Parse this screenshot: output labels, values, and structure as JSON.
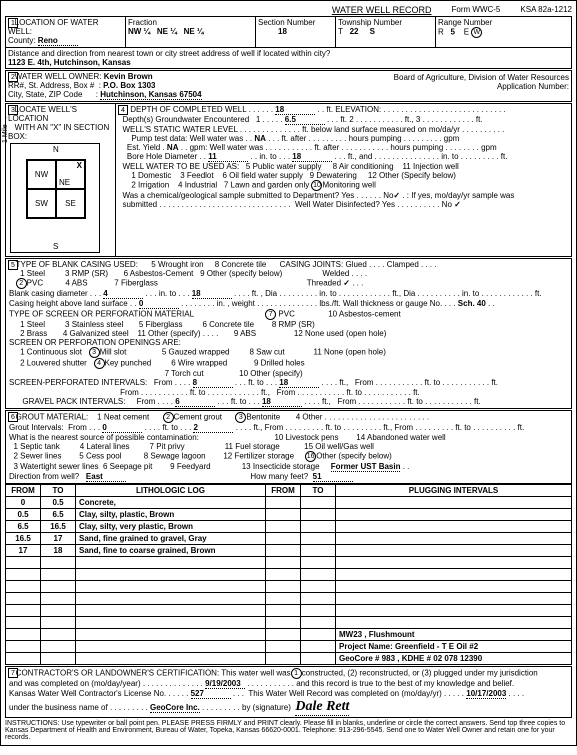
{
  "form": {
    "title": "WATER WELL RECORD",
    "formNo": "Form WWC-5",
    "ksa": "KSA 82a-1212"
  },
  "loc": {
    "county": "Reno",
    "fraction": {
      "a": "NW ¼",
      "b": "NE ¼",
      "c": "NE ¼"
    },
    "section": "18",
    "township": "22",
    "townshipDir": "S",
    "range": "5",
    "rangeDir": "W",
    "address": "1123 E. 4th, Hutchinson, Kansas"
  },
  "owner": {
    "name": "Kevin Brown",
    "box": "P.O. Box 1303",
    "cityStateZip": "Hutchinson, Kansas  67504",
    "board": "Board of Agriculture, Division of Water Resources",
    "appNum": "Application Number:"
  },
  "diagram": {
    "nw": "NW",
    "ne": "NE",
    "sw": "SW",
    "se": "SE",
    "x": "X"
  },
  "well": {
    "depthCompleted": "18",
    "elevLabel": "ft. ELEVATION:",
    "depthGW": "1",
    "depthGWft": "6.5",
    "staticNA": "NA",
    "pumpNA": "NA",
    "estYieldNA": "NA",
    "boreA": "11",
    "boreB": "18",
    "useAs": "WELL WATER TO BE USED AS:",
    "uses": [
      "5  Public water supply",
      "8  Air conditioning",
      "11  Injection well",
      "1  Domestic",
      "3  Feedlot",
      "6  Oil field water supply",
      "9  Dewatering",
      "12  Other (Specify below)",
      "2  Irrigation",
      "4  Industrial",
      "7  Lawn and garden only",
      "Monitoring well"
    ],
    "monNum": "10",
    "chemQ": "Was a chemical/geological sample submitted to Department?  Yes",
    "chemNo": "No",
    "chemNoChk": "✓",
    "disQ": "Well Water Disinfected?  Yes",
    "disNo": "No",
    "disChk": "✓"
  },
  "casing": {
    "title": "TYPE OF BLANK CASING USED:",
    "items": [
      "1  Steel",
      "3  RMP (SR)",
      "5  Wrought iron",
      "8  Concrete tile",
      "PVC",
      "4  ABS",
      "6  Asbestos-Cement",
      "9  Other (specify below)",
      "7  Fiberglass"
    ],
    "pvcNum": "2",
    "joints": "CASING JOINTS:  Glued . . . .  Clamped . . . .",
    "welded": "Welded . . . .",
    "threaded": "Threaded",
    "threadedChk": "✓",
    "diaA": "4",
    "diaB": "18",
    "heightA": "0",
    "schLabel": "lbs./ft. Wall thickness or gauge No.",
    "sch": "Sch. 40",
    "screenTitle": "TYPE OF SCREEN OR PERFORATION MATERIAL",
    "screenItems": [
      "1  Steel",
      "3  Stainless steel",
      "5  Fiberglass",
      "PVC",
      "10  Asbestos-cement",
      "2  Brass",
      "4  Galvanized steel",
      "6  Concrete tile",
      "8  RMP (SR)",
      "11  Other (specify) . . . .",
      "9  ABS",
      "12  None used (open hole)"
    ],
    "screenPvcNum": "7",
    "openTitle": "SCREEN OR PERFORATION OPENINGS ARE:",
    "openItems": [
      "1  Continuous slot",
      "Mill slot",
      "5  Gauzed wrapped",
      "8  Saw cut",
      "11  None (open hole)",
      "2  Louvered shutter",
      "Key punched",
      "6  Wire wrapped",
      "9  Drilled holes",
      "7  Torch cut",
      "10  Other (specify)"
    ],
    "open3": "3",
    "open4": "4",
    "spiLabel": "SCREEN-PERFORATED INTERVALS:",
    "spiFrom": "8",
    "spiTo": "18",
    "gpiLabel": "GRAVEL PACK INTERVALS:",
    "gpiFrom": "6",
    "gpiTo": "18"
  },
  "grout": {
    "title": "GROUT MATERIAL:",
    "items": [
      "1  Neat cement",
      "Cement grout",
      "Bentonite",
      "4  Other"
    ],
    "g2": "2",
    "g3": "3",
    "intFrom": "0",
    "intTo": "2",
    "nearest": "What is the nearest source of possible contamination:",
    "contam": [
      "1  Septic tank",
      "4  Lateral lines",
      "7  Pit privy",
      "10  Livestock pens",
      "14  Abandoned water well",
      "2  Sewer lines",
      "5  Cess pool",
      "8  Sewage lagoon",
      "11  Fuel storage",
      "15  Oil well/Gas well",
      "12  Fertilizer storage",
      "Other (specify below)",
      "3  Watertight sewer lines",
      "6  Seepage pit",
      "9  Feedyard",
      "13  Insecticide storage"
    ],
    "c16": "16",
    "otherSpec": "Former UST Basin",
    "dirLabel": "Direction from well?",
    "dir": "East",
    "feetLabel": "How many feet?",
    "feet": "51"
  },
  "lith": {
    "headers": [
      "FROM",
      "TO",
      "LITHOLOGIC LOG",
      "FROM",
      "TO",
      "PLUGGING INTERVALS"
    ],
    "rows": [
      [
        "0",
        "0.5",
        "Concrete,",
        "",
        "",
        ""
      ],
      [
        "0.5",
        "6.5",
        "Clay, silty, plastic, Brown",
        "",
        "",
        ""
      ],
      [
        "6.5",
        "16.5",
        "Clay, silty, very plastic, Brown",
        "",
        "",
        ""
      ],
      [
        "16.5",
        "17",
        "Sand, fine grained to gravel, Gray",
        "",
        "",
        ""
      ],
      [
        "17",
        "18",
        "Sand, fine to coarse grained, Brown",
        "",
        "",
        ""
      ]
    ],
    "proj1": "MW23 , Flushmount",
    "proj2": "Project Name:  Greenfield - T  E Oil #2",
    "proj3": "GeoCore # 983 ,  KDHE # 02 078 12390"
  },
  "cert": {
    "text1": "CONTRACTOR'S OR LANDOWNER'S CERTIFICATION:  This water well was",
    "c1": "1",
    "text2": "constructed, (2) reconstructed, or (3) plugged under my jurisdiction",
    "compLabel": "and was completed on (mo/day/year)",
    "compDate": "9/19/2003",
    "text3": "and this record is true to the best of my knowledge and belief.",
    "licLabel": "Kansas Water Well Contractor's License No.",
    "licNo": "527",
    "recLabel": "This Water Well Record was completed on (mo/day/yr)",
    "recDate": "10/17/2003",
    "busLabel": "under the business name of",
    "busName": "GeoCore Inc.",
    "sigLabel": "by (signature)",
    "sig": "Dale Rett"
  },
  "footer": "INSTRUCTIONS:  Use typewriter or ball point pen.  PLEASE PRESS FIRMLY and PRINT clearly.  Please fill in blanks, underline or circle the correct answers.  Send top three copies to Kansas Department of Health and Environment,  Bureau of Water, Topeka, Kansas 66620-0001.  Telephone: 913-296-5545.  Send one to Water Well Owner and retain one for your records."
}
